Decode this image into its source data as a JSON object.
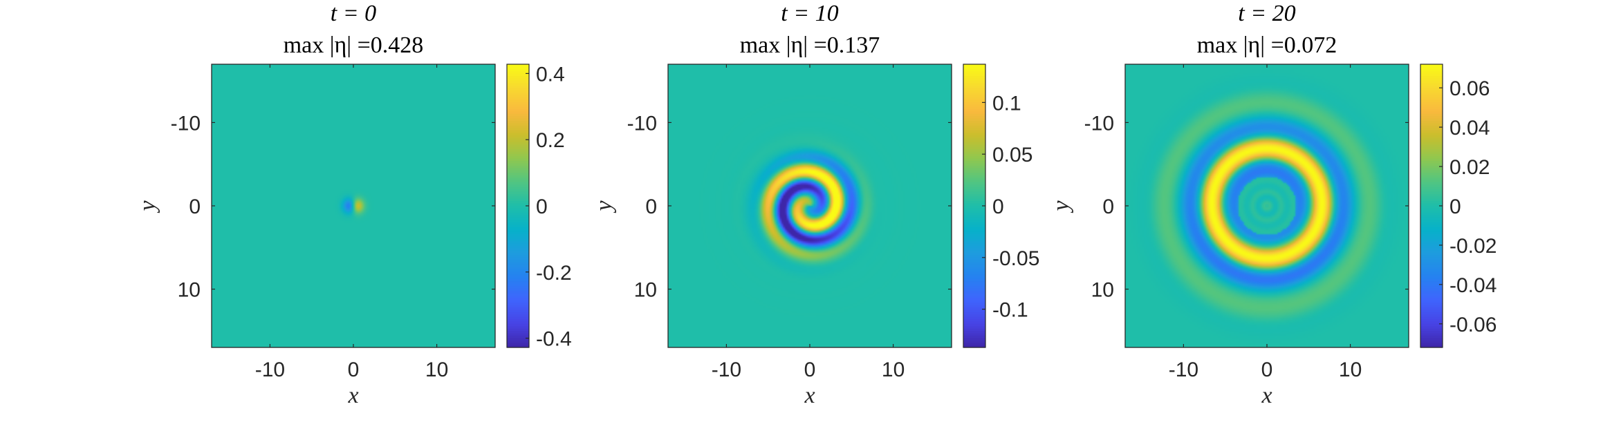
{
  "colors": {
    "colormap": [
      "#3e26a8",
      "#4743e5",
      "#3f64fd",
      "#2582f0",
      "#1e9cde",
      "#07b1c9",
      "#1fbea9",
      "#50c582",
      "#90c74f",
      "#cbbe2c",
      "#f9b93e",
      "#f8d92f",
      "#f9fb15"
    ],
    "axis": "#262626"
  },
  "chart_data": [
    {
      "type": "heatmap",
      "title": "t = 0",
      "subtitle": "max |η| =0.428",
      "xlabel": "x",
      "ylabel": "y",
      "xlim": [
        -17,
        17
      ],
      "ylim": [
        -17,
        17
      ],
      "y_direction": "reversed",
      "x_ticks": [
        -10,
        0,
        10
      ],
      "y_ticks": [
        -10,
        0,
        10
      ],
      "clim": [
        -0.428,
        0.428
      ],
      "colorbar_ticks": [
        0.4,
        0.2,
        0,
        -0.2,
        -0.4
      ],
      "field": "dipole"
    },
    {
      "type": "heatmap",
      "title": "t = 10",
      "subtitle": "max |η| =0.137",
      "xlabel": "x",
      "ylabel": "y",
      "xlim": [
        -17,
        17
      ],
      "ylim": [
        -17,
        17
      ],
      "y_direction": "reversed",
      "x_ticks": [
        -10,
        0,
        10
      ],
      "y_ticks": [
        -10,
        0,
        10
      ],
      "clim": [
        -0.137,
        0.137
      ],
      "colorbar_ticks": [
        0.1,
        0.05,
        0,
        -0.05,
        -0.1
      ],
      "field": "spiral"
    },
    {
      "type": "heatmap",
      "title": "t = 20",
      "subtitle": "max |η| =0.072",
      "xlabel": "x",
      "ylabel": "y",
      "xlim": [
        -17,
        17
      ],
      "ylim": [
        -17,
        17
      ],
      "y_direction": "reversed",
      "x_ticks": [
        -10,
        0,
        10
      ],
      "y_ticks": [
        -10,
        0,
        10
      ],
      "clim": [
        -0.072,
        0.072
      ],
      "colorbar_ticks": [
        0.06,
        0.04,
        0.02,
        0,
        -0.02,
        -0.04,
        -0.06
      ],
      "field": "rings"
    }
  ]
}
